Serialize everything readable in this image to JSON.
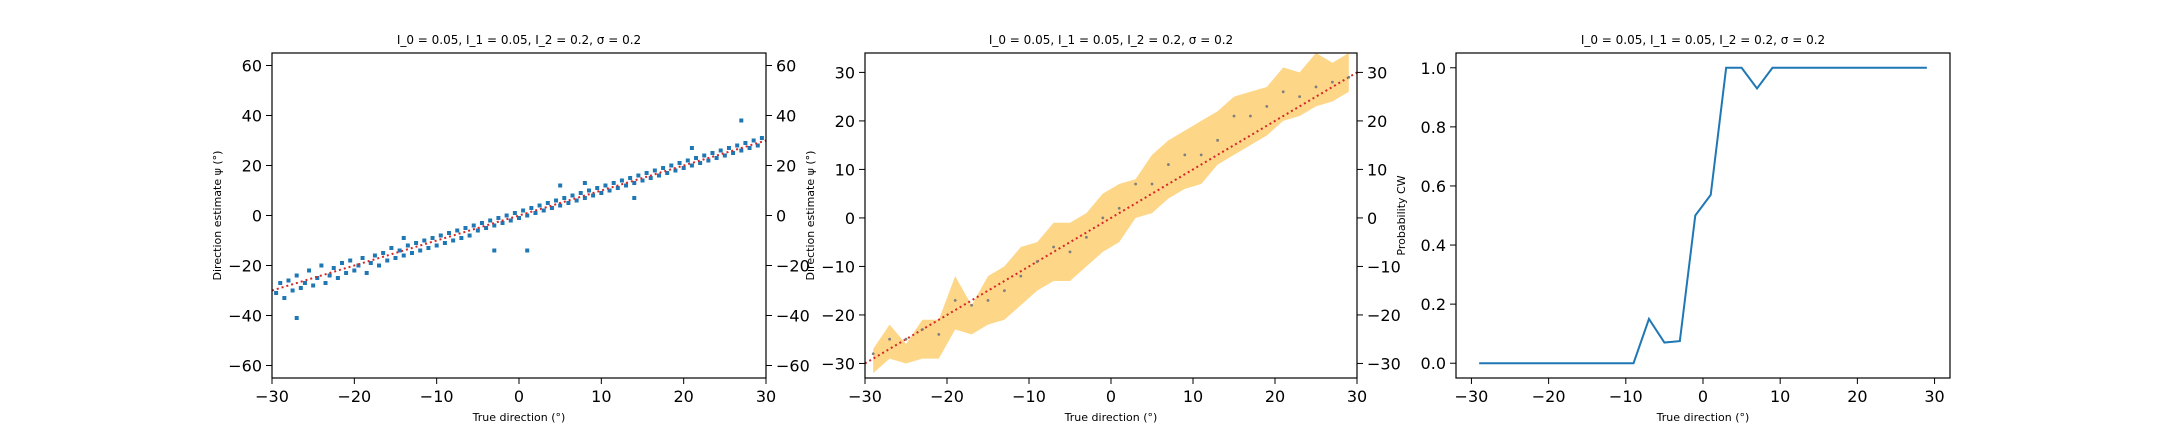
{
  "figure": {
    "panels": [
      {
        "title": "I_0 = 0.05, I_1 = 0.05, I_2 = 0.2, σ = 0.2",
        "xlabel": "True direction (°)",
        "ylabel": "Direction estimate ψ (°)"
      },
      {
        "title": "I_0 = 0.05, I_1 = 0.05, I_2 = 0.2, σ = 0.2",
        "xlabel": "True direction (°)",
        "ylabel": "Direction estimate ψ (°)"
      },
      {
        "title": "I_0 = 0.05, I_1 = 0.05, I_2 = 0.2, σ = 0.2",
        "xlabel": "True direction (°)",
        "ylabel": "Probability CW"
      }
    ]
  },
  "colors": {
    "scatter": "#1f77b4",
    "identity_line": "#d62728",
    "band_fill": "#fdd27a",
    "mean_dots": "#7f7f7f",
    "curve": "#1f77b4",
    "axes": "#000000"
  },
  "chart_data": [
    {
      "type": "scatter",
      "title": "I_0 = 0.05, I_1 = 0.05, I_2 = 0.2, σ = 0.2",
      "xlabel": "True direction (°)",
      "ylabel": "Direction estimate ψ (°)",
      "xlim": [
        -30,
        30
      ],
      "ylim": [
        -65,
        65
      ],
      "xticks": [
        -30,
        -20,
        -10,
        0,
        10,
        20,
        30
      ],
      "yticks": [
        -60,
        -40,
        -20,
        0,
        20,
        40,
        60
      ],
      "right_yticks": [
        -60,
        -40,
        -20,
        0,
        20,
        40,
        60
      ],
      "series": [
        {
          "type": "scatter",
          "description_values": "noisy estimates around identity",
          "x": [
            -29.5,
            -29,
            -28.5,
            -28,
            -27.5,
            -27,
            -26.5,
            -26,
            -25.5,
            -25,
            -24.5,
            -24,
            -23.5,
            -23,
            -22.5,
            -22,
            -21.5,
            -21,
            -20.5,
            -20,
            -19.5,
            -19,
            -18.5,
            -18,
            -17.5,
            -17,
            -16.5,
            -16,
            -15.5,
            -15,
            -14.5,
            -14,
            -13.5,
            -13,
            -12.5,
            -12,
            -11.5,
            -11,
            -10.5,
            -10,
            -9.5,
            -9,
            -8.5,
            -8,
            -7.5,
            -7,
            -6.5,
            -6,
            -5.5,
            -5,
            -4.5,
            -4,
            -3.5,
            -3,
            -2.5,
            -2,
            -1.5,
            -1,
            -0.5,
            0,
            0.5,
            1,
            1.5,
            2,
            2.5,
            3,
            3.5,
            4,
            4.5,
            5,
            5.5,
            6,
            6.5,
            7,
            7.5,
            8,
            8.5,
            9,
            9.5,
            10,
            10.5,
            11,
            11.5,
            12,
            12.5,
            13,
            13.5,
            14,
            14.5,
            15,
            15.5,
            16,
            16.5,
            17,
            17.5,
            18,
            18.5,
            19,
            19.5,
            20,
            20.5,
            21,
            21.5,
            22,
            22.5,
            23,
            23.5,
            24,
            24.5,
            25,
            25.5,
            26,
            26.5,
            27,
            27.5,
            28,
            28.5,
            29,
            29.5,
            -27,
            -14,
            -3,
            1,
            5,
            8,
            14,
            21,
            27
          ],
          "y": [
            -31,
            -27,
            -33,
            -26,
            -30,
            -24,
            -29,
            -27,
            -22,
            -28,
            -25,
            -20,
            -27,
            -24,
            -21,
            -25,
            -19,
            -23,
            -18,
            -22,
            -20,
            -17,
            -23,
            -19,
            -16,
            -20,
            -15,
            -18,
            -13,
            -17,
            -14,
            -16,
            -12,
            -15,
            -11,
            -14,
            -10,
            -13,
            -9,
            -12,
            -8,
            -11,
            -7,
            -10,
            -6,
            -9,
            -5,
            -8,
            -4,
            -6,
            -3,
            -5,
            -2,
            -4,
            -1,
            -3,
            0,
            -2,
            1,
            -1,
            2,
            0,
            3,
            1,
            4,
            2,
            5,
            3,
            6,
            4,
            7,
            5,
            8,
            6,
            9,
            7,
            10,
            8,
            11,
            9,
            12,
            10,
            13,
            11,
            14,
            12,
            15,
            13,
            16,
            14,
            17,
            15,
            18,
            16,
            19,
            17,
            20,
            18,
            21,
            19,
            22,
            20,
            23,
            21,
            24,
            22,
            25,
            23,
            26,
            24,
            27,
            25,
            28,
            26,
            29,
            27,
            30,
            28,
            31,
            -41,
            -9,
            -14,
            -14,
            12,
            13,
            7,
            27,
            38
          ]
        },
        {
          "type": "line",
          "style": "dotted",
          "x": [
            -30,
            30
          ],
          "y": [
            -30,
            30
          ]
        }
      ],
      "grid": false
    },
    {
      "type": "area",
      "title": "I_0 = 0.05, I_1 = 0.05, I_2 = 0.2, σ = 0.2",
      "xlabel": "True direction (°)",
      "ylabel": "Direction estimate ψ (°)",
      "xlim": [
        -30,
        30
      ],
      "ylim": [
        -33,
        34
      ],
      "xticks": [
        -30,
        -20,
        -10,
        0,
        10,
        20,
        30
      ],
      "yticks": [
        -30,
        -20,
        -10,
        0,
        10,
        20,
        30
      ],
      "right_yticks": [
        -30,
        -20,
        -10,
        0,
        10,
        20,
        30
      ],
      "x": [
        -29,
        -27,
        -25,
        -23,
        -21,
        -19,
        -17,
        -15,
        -13,
        -11,
        -9,
        -7,
        -5,
        -3,
        -1,
        1,
        3,
        5,
        7,
        9,
        11,
        13,
        15,
        17,
        19,
        21,
        23,
        25,
        27,
        29
      ],
      "mean": [
        -28,
        -25,
        -25,
        -23,
        -24,
        -17,
        -18,
        -17,
        -15,
        -12,
        -9,
        -6,
        -7,
        -4,
        0,
        2,
        7,
        7,
        11,
        13,
        13,
        16,
        21,
        21,
        23,
        26,
        25,
        27,
        28,
        29
      ],
      "lower": [
        -32,
        -29,
        -30,
        -29,
        -29,
        -23,
        -24,
        -22,
        -21,
        -18,
        -15,
        -13,
        -13,
        -10,
        -7,
        -5,
        0,
        1,
        4,
        6,
        7,
        11,
        13,
        15,
        17,
        20,
        21,
        23,
        24,
        26
      ],
      "upper": [
        -27,
        -22,
        -26,
        -21,
        -21,
        -12,
        -18,
        -12,
        -10,
        -6,
        -5,
        -1,
        -1,
        1,
        5,
        7,
        8,
        13,
        16,
        18,
        20,
        22,
        25,
        26,
        27,
        31,
        30,
        34,
        32,
        34
      ],
      "identity": {
        "x": [
          -30,
          30
        ],
        "y": [
          -30,
          30
        ]
      },
      "grid": false
    },
    {
      "type": "line",
      "title": "I_0 = 0.05, I_1 = 0.05, I_2 = 0.2, σ = 0.2",
      "xlabel": "True direction (°)",
      "ylabel": "Probability CW",
      "xlim": [
        -32,
        32
      ],
      "ylim": [
        -0.05,
        1.05
      ],
      "xticks": [
        -30,
        -20,
        -10,
        0,
        10,
        20,
        30
      ],
      "yticks": [
        0.0,
        0.2,
        0.4,
        0.6,
        0.8,
        1.0
      ],
      "ytick_labels": [
        "0.0",
        "0.2",
        "0.4",
        "0.6",
        "0.8",
        "1.0"
      ],
      "x": [
        -29,
        -27,
        -25,
        -23,
        -21,
        -19,
        -17,
        -15,
        -13,
        -11,
        -9,
        -7,
        -5,
        -3,
        -1,
        1,
        3,
        5,
        7,
        9,
        11,
        13,
        15,
        17,
        19,
        21,
        23,
        25,
        27,
        29
      ],
      "y": [
        0,
        0,
        0,
        0,
        0,
        0,
        0,
        0,
        0,
        0,
        0,
        0.15,
        0.07,
        0.075,
        0.5,
        0.57,
        1.0,
        1.0,
        0.93,
        1.0,
        1.0,
        1.0,
        1.0,
        1.0,
        1.0,
        1.0,
        1.0,
        1.0,
        1.0,
        1.0
      ],
      "grid": false
    }
  ]
}
